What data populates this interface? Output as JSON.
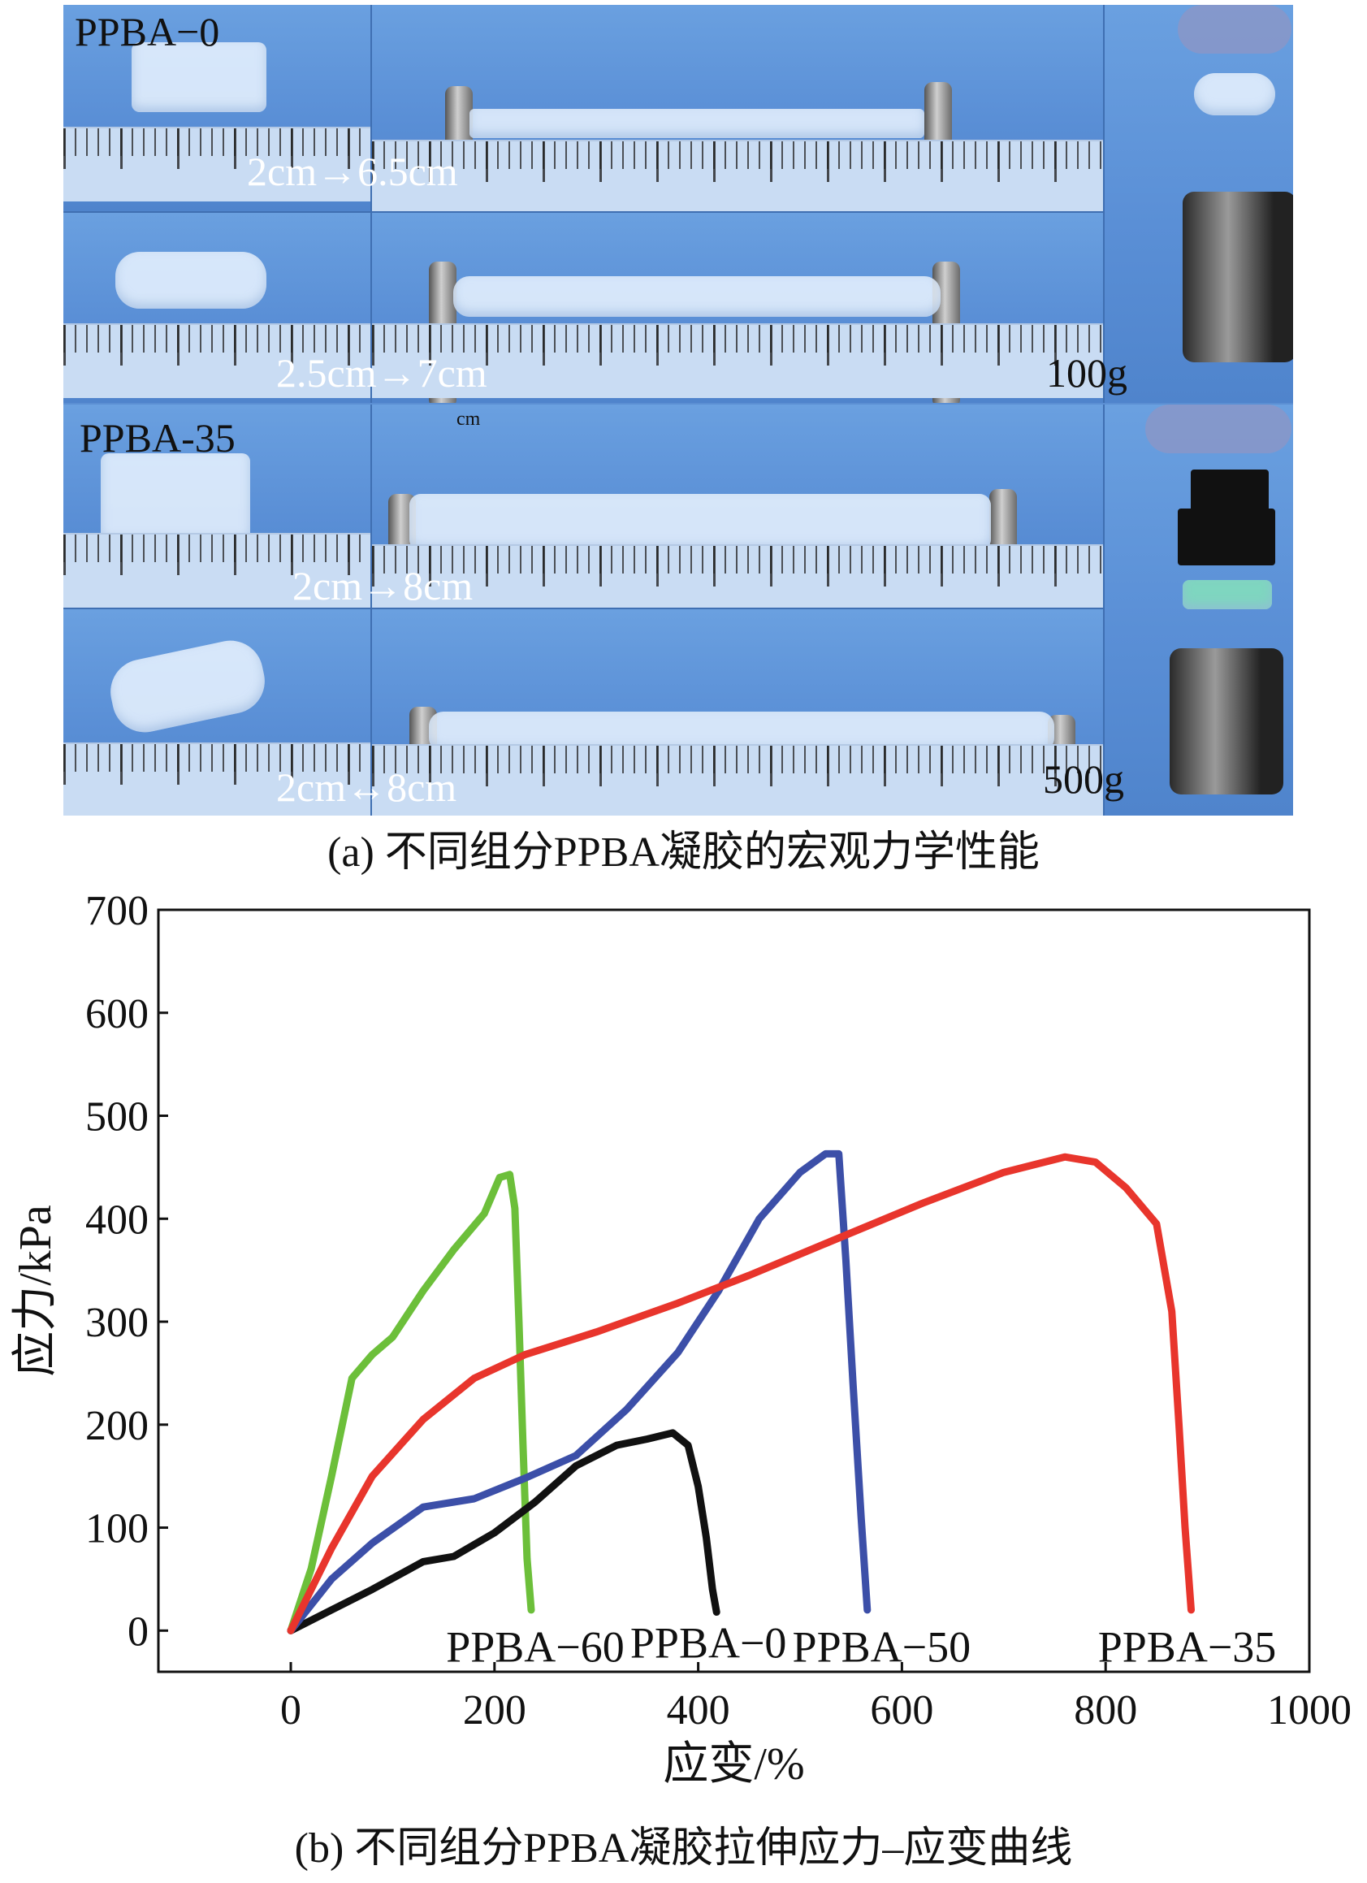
{
  "panel_a": {
    "caption": "(a) 不同组分PPBA凝胶的宏观力学性能",
    "labels": {
      "group_top": "PPBA−0",
      "group_bottom": "PPBA-35",
      "stretch_1": "2cm→6.5cm",
      "stretch_2": "2.5cm→7cm",
      "stretch_3": "2cm→8cm",
      "stretch_4": "2cm↔8cm",
      "weight_1": "100g",
      "weight_2": "500g",
      "unit_mark": "cm"
    }
  },
  "panel_b": {
    "caption": "(b) 不同组分PPBA凝胶拉伸应力–应变曲线"
  },
  "chart_data": {
    "type": "line",
    "xlabel": "应变/%",
    "ylabel": "应力/kPa",
    "xlim": [
      -130,
      1000
    ],
    "ylim": [
      -40,
      700
    ],
    "xticks": [
      0,
      200,
      400,
      600,
      800,
      1000
    ],
    "yticks": [
      0,
      100,
      200,
      300,
      400,
      500,
      600,
      700
    ],
    "grid": false,
    "series": [
      {
        "name": "PPBA−60",
        "color": "#6cbf3a",
        "points": [
          [
            0,
            0
          ],
          [
            20,
            60
          ],
          [
            40,
            150
          ],
          [
            60,
            245
          ],
          [
            80,
            268
          ],
          [
            100,
            285
          ],
          [
            130,
            330
          ],
          [
            160,
            370
          ],
          [
            190,
            405
          ],
          [
            205,
            440
          ],
          [
            215,
            443
          ],
          [
            220,
            410
          ],
          [
            224,
            300
          ],
          [
            228,
            180
          ],
          [
            232,
            70
          ],
          [
            236,
            20
          ]
        ]
      },
      {
        "name": "PPBA−0",
        "color": "#111111",
        "points": [
          [
            0,
            0
          ],
          [
            40,
            20
          ],
          [
            80,
            40
          ],
          [
            130,
            67
          ],
          [
            160,
            72
          ],
          [
            200,
            95
          ],
          [
            240,
            125
          ],
          [
            280,
            160
          ],
          [
            320,
            180
          ],
          [
            350,
            186
          ],
          [
            375,
            192
          ],
          [
            390,
            180
          ],
          [
            400,
            140
          ],
          [
            408,
            90
          ],
          [
            414,
            40
          ],
          [
            418,
            18
          ]
        ]
      },
      {
        "name": "PPBA−50",
        "color": "#3c4fa8",
        "points": [
          [
            0,
            0
          ],
          [
            40,
            50
          ],
          [
            80,
            85
          ],
          [
            130,
            120
          ],
          [
            180,
            128
          ],
          [
            230,
            148
          ],
          [
            280,
            170
          ],
          [
            330,
            215
          ],
          [
            380,
            270
          ],
          [
            420,
            330
          ],
          [
            460,
            400
          ],
          [
            500,
            445
          ],
          [
            525,
            463
          ],
          [
            538,
            463
          ],
          [
            545,
            360
          ],
          [
            552,
            240
          ],
          [
            560,
            110
          ],
          [
            566,
            20
          ]
        ]
      },
      {
        "name": "PPBA−35",
        "color": "#e8352c",
        "points": [
          [
            0,
            0
          ],
          [
            40,
            80
          ],
          [
            80,
            150
          ],
          [
            130,
            205
          ],
          [
            180,
            245
          ],
          [
            230,
            268
          ],
          [
            300,
            290
          ],
          [
            380,
            318
          ],
          [
            450,
            345
          ],
          [
            530,
            378
          ],
          [
            620,
            415
          ],
          [
            700,
            445
          ],
          [
            760,
            460
          ],
          [
            790,
            455
          ],
          [
            820,
            430
          ],
          [
            850,
            395
          ],
          [
            865,
            310
          ],
          [
            872,
            200
          ],
          [
            878,
            100
          ],
          [
            884,
            20
          ]
        ]
      }
    ]
  }
}
